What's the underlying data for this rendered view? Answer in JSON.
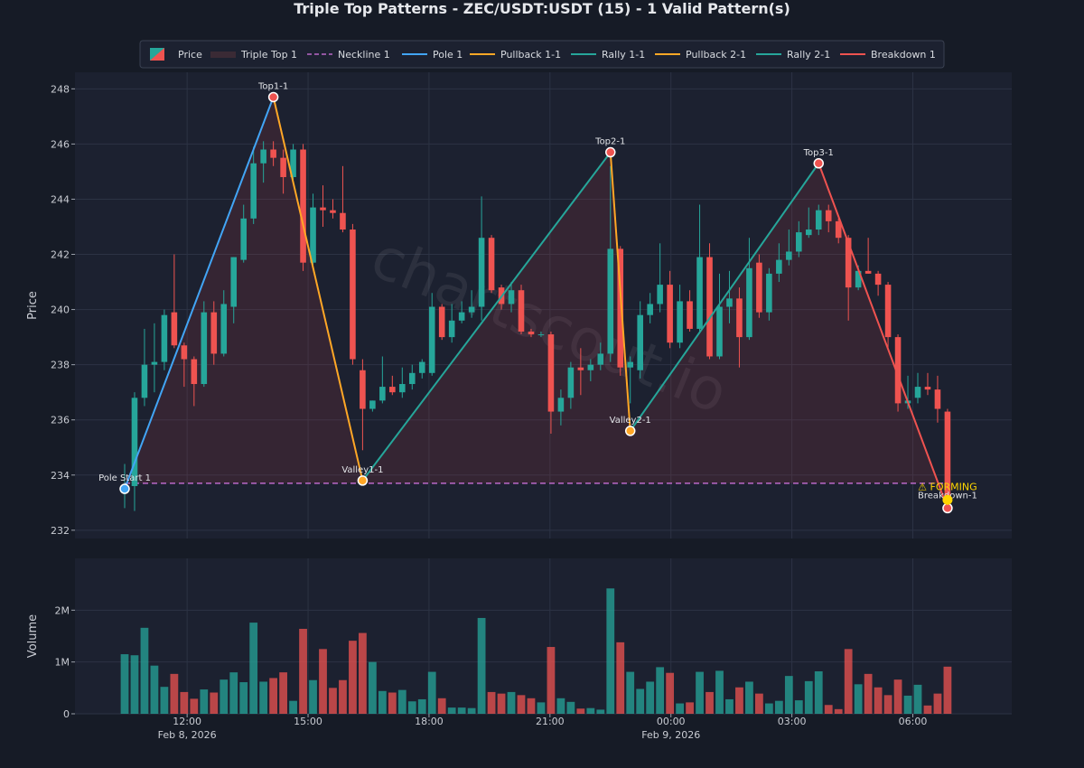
{
  "chart_data": {
    "type": "candlestick",
    "title": "Triple Top Patterns - ZEC/USDT:USDT (15) - 1 Valid Pattern(s)",
    "watermark": "chartscout.io",
    "price_ylabel": "Price",
    "volume_ylabel": "Volume",
    "price_ylim": [
      231.7,
      248.6
    ],
    "price_yticks": [
      232,
      234,
      236,
      238,
      240,
      242,
      244,
      246,
      248
    ],
    "volume_ylim": [
      0,
      3000000
    ],
    "volume_ticks": [
      {
        "value": 0,
        "label": "0"
      },
      {
        "value": 1000000,
        "label": "1M"
      },
      {
        "value": 2000000,
        "label": "2M"
      }
    ],
    "x_ticks": [
      {
        "index": 6.3,
        "time": "12:00",
        "date": "Feb 8, 2026"
      },
      {
        "index": 18.5,
        "time": "15:00",
        "date": ""
      },
      {
        "index": 30.7,
        "time": "18:00",
        "date": ""
      },
      {
        "index": 42.9,
        "time": "21:00",
        "date": ""
      },
      {
        "index": 55.1,
        "time": "00:00",
        "date": "Feb 9, 2026"
      },
      {
        "index": 67.3,
        "time": "03:00",
        "date": ""
      },
      {
        "index": 79.5,
        "time": "06:00",
        "date": ""
      }
    ],
    "grid": true,
    "legend_position": "top-center",
    "colors": {
      "up": "#26a69a",
      "down": "#ef5350",
      "pole": "#42a5f5",
      "pullback": "#ffa726",
      "rally": "#26a69a",
      "breakdown": "#ef5350",
      "neckline": "#ba68c8",
      "forming": "#ffd600"
    },
    "candles": [
      {
        "o": 233.5,
        "h": 234.4,
        "l": 232.8,
        "c": 233.6,
        "v": 1150000
      },
      {
        "o": 233.6,
        "h": 237.0,
        "l": 232.7,
        "c": 236.8,
        "v": 1130000
      },
      {
        "o": 236.8,
        "h": 239.3,
        "l": 236.5,
        "c": 238.0,
        "v": 1660000
      },
      {
        "o": 238.0,
        "h": 239.5,
        "l": 237.0,
        "c": 238.1,
        "v": 930000
      },
      {
        "o": 238.1,
        "h": 240.0,
        "l": 237.8,
        "c": 239.8,
        "v": 520000
      },
      {
        "o": 239.9,
        "h": 242.0,
        "l": 238.6,
        "c": 238.7,
        "v": 770000
      },
      {
        "o": 238.7,
        "h": 238.8,
        "l": 237.2,
        "c": 238.2,
        "v": 420000
      },
      {
        "o": 238.2,
        "h": 238.3,
        "l": 236.5,
        "c": 237.3,
        "v": 290000
      },
      {
        "o": 237.3,
        "h": 240.3,
        "l": 237.2,
        "c": 239.9,
        "v": 470000
      },
      {
        "o": 239.9,
        "h": 240.3,
        "l": 238.0,
        "c": 238.4,
        "v": 410000
      },
      {
        "o": 238.4,
        "h": 240.7,
        "l": 238.3,
        "c": 240.2,
        "v": 660000
      },
      {
        "o": 240.1,
        "h": 241.9,
        "l": 239.5,
        "c": 241.9,
        "v": 800000
      },
      {
        "o": 241.8,
        "h": 243.8,
        "l": 241.7,
        "c": 243.3,
        "v": 610000
      },
      {
        "o": 243.3,
        "h": 245.9,
        "l": 243.1,
        "c": 245.3,
        "v": 1760000
      },
      {
        "o": 245.3,
        "h": 246.1,
        "l": 244.6,
        "c": 245.8,
        "v": 620000
      },
      {
        "o": 245.8,
        "h": 246.1,
        "l": 245.2,
        "c": 245.5,
        "v": 690000
      },
      {
        "o": 245.5,
        "h": 245.8,
        "l": 244.2,
        "c": 244.8,
        "v": 800000
      },
      {
        "o": 244.8,
        "h": 246.0,
        "l": 244.7,
        "c": 245.8,
        "v": 250000
      },
      {
        "o": 245.8,
        "h": 246.0,
        "l": 241.4,
        "c": 241.7,
        "v": 1640000
      },
      {
        "o": 241.7,
        "h": 244.2,
        "l": 241.6,
        "c": 243.7,
        "v": 650000
      },
      {
        "o": 243.7,
        "h": 244.5,
        "l": 243.0,
        "c": 243.6,
        "v": 1250000
      },
      {
        "o": 243.6,
        "h": 244.0,
        "l": 243.3,
        "c": 243.5,
        "v": 500000
      },
      {
        "o": 243.5,
        "h": 245.2,
        "l": 242.8,
        "c": 242.9,
        "v": 650000
      },
      {
        "o": 242.9,
        "h": 243.1,
        "l": 238.0,
        "c": 238.2,
        "v": 1410000
      },
      {
        "o": 237.8,
        "h": 238.2,
        "l": 234.9,
        "c": 236.4,
        "v": 1560000
      },
      {
        "o": 236.4,
        "h": 236.7,
        "l": 236.3,
        "c": 236.7,
        "v": 1000000
      },
      {
        "o": 236.7,
        "h": 238.3,
        "l": 236.6,
        "c": 237.2,
        "v": 440000
      },
      {
        "o": 237.2,
        "h": 237.6,
        "l": 236.9,
        "c": 237.0,
        "v": 410000
      },
      {
        "o": 237.0,
        "h": 237.9,
        "l": 236.8,
        "c": 237.3,
        "v": 460000
      },
      {
        "o": 237.3,
        "h": 238.0,
        "l": 237.1,
        "c": 237.7,
        "v": 240000
      },
      {
        "o": 237.7,
        "h": 238.2,
        "l": 237.5,
        "c": 238.1,
        "v": 280000
      },
      {
        "o": 237.7,
        "h": 240.6,
        "l": 237.6,
        "c": 240.1,
        "v": 810000
      },
      {
        "o": 240.1,
        "h": 240.2,
        "l": 238.9,
        "c": 239.0,
        "v": 300000
      },
      {
        "o": 239.0,
        "h": 240.2,
        "l": 238.8,
        "c": 239.6,
        "v": 120000
      },
      {
        "o": 239.6,
        "h": 240.3,
        "l": 239.5,
        "c": 239.9,
        "v": 120000
      },
      {
        "o": 239.9,
        "h": 240.7,
        "l": 239.7,
        "c": 240.1,
        "v": 110000
      },
      {
        "o": 240.1,
        "h": 244.1,
        "l": 239.6,
        "c": 242.6,
        "v": 1850000
      },
      {
        "o": 242.6,
        "h": 242.7,
        "l": 240.6,
        "c": 240.7,
        "v": 420000
      },
      {
        "o": 240.8,
        "h": 240.9,
        "l": 240.0,
        "c": 240.2,
        "v": 390000
      },
      {
        "o": 240.2,
        "h": 241.0,
        "l": 239.9,
        "c": 240.7,
        "v": 420000
      },
      {
        "o": 240.7,
        "h": 240.9,
        "l": 239.1,
        "c": 239.2,
        "v": 360000
      },
      {
        "o": 239.2,
        "h": 239.3,
        "l": 239.0,
        "c": 239.1,
        "v": 300000
      },
      {
        "o": 239.1,
        "h": 239.2,
        "l": 239.0,
        "c": 239.1,
        "v": 220000
      },
      {
        "o": 239.1,
        "h": 239.2,
        "l": 235.5,
        "c": 236.3,
        "v": 1290000
      },
      {
        "o": 236.3,
        "h": 237.1,
        "l": 235.8,
        "c": 236.8,
        "v": 300000
      },
      {
        "o": 236.8,
        "h": 238.1,
        "l": 236.4,
        "c": 237.9,
        "v": 230000
      },
      {
        "o": 237.9,
        "h": 238.6,
        "l": 236.9,
        "c": 237.8,
        "v": 100000
      },
      {
        "o": 237.8,
        "h": 238.2,
        "l": 237.4,
        "c": 238.0,
        "v": 110000
      },
      {
        "o": 238.0,
        "h": 238.8,
        "l": 237.8,
        "c": 238.4,
        "v": 80000
      },
      {
        "o": 238.4,
        "h": 245.2,
        "l": 238.1,
        "c": 242.2,
        "v": 2420000
      },
      {
        "o": 242.2,
        "h": 242.3,
        "l": 237.6,
        "c": 237.9,
        "v": 1380000
      },
      {
        "o": 237.9,
        "h": 238.3,
        "l": 236.6,
        "c": 238.1,
        "v": 810000
      },
      {
        "o": 237.8,
        "h": 240.3,
        "l": 237.5,
        "c": 239.8,
        "v": 480000
      },
      {
        "o": 239.8,
        "h": 240.6,
        "l": 239.5,
        "c": 240.2,
        "v": 620000
      },
      {
        "o": 240.2,
        "h": 242.4,
        "l": 239.9,
        "c": 240.9,
        "v": 900000
      },
      {
        "o": 240.9,
        "h": 241.4,
        "l": 238.6,
        "c": 238.8,
        "v": 790000
      },
      {
        "o": 238.8,
        "h": 240.9,
        "l": 238.6,
        "c": 240.3,
        "v": 200000
      },
      {
        "o": 240.3,
        "h": 240.7,
        "l": 239.2,
        "c": 239.3,
        "v": 220000
      },
      {
        "o": 239.3,
        "h": 243.8,
        "l": 239.2,
        "c": 241.9,
        "v": 810000
      },
      {
        "o": 241.9,
        "h": 242.4,
        "l": 238.2,
        "c": 238.3,
        "v": 420000
      },
      {
        "o": 238.3,
        "h": 241.3,
        "l": 238.2,
        "c": 240.1,
        "v": 830000
      },
      {
        "o": 240.1,
        "h": 241.4,
        "l": 239.5,
        "c": 240.4,
        "v": 280000
      },
      {
        "o": 240.4,
        "h": 240.8,
        "l": 237.9,
        "c": 239.0,
        "v": 510000
      },
      {
        "o": 239.0,
        "h": 242.6,
        "l": 238.9,
        "c": 241.5,
        "v": 620000
      },
      {
        "o": 241.7,
        "h": 242.0,
        "l": 239.7,
        "c": 239.9,
        "v": 390000
      },
      {
        "o": 239.9,
        "h": 241.5,
        "l": 239.6,
        "c": 241.3,
        "v": 200000
      },
      {
        "o": 241.3,
        "h": 242.4,
        "l": 241.0,
        "c": 241.8,
        "v": 250000
      },
      {
        "o": 241.8,
        "h": 242.9,
        "l": 241.6,
        "c": 242.1,
        "v": 730000
      },
      {
        "o": 242.1,
        "h": 243.2,
        "l": 241.9,
        "c": 242.8,
        "v": 260000
      },
      {
        "o": 242.7,
        "h": 243.7,
        "l": 242.6,
        "c": 242.9,
        "v": 630000
      },
      {
        "o": 242.9,
        "h": 243.8,
        "l": 242.7,
        "c": 243.6,
        "v": 820000
      },
      {
        "o": 243.6,
        "h": 243.8,
        "l": 242.8,
        "c": 243.2,
        "v": 170000
      },
      {
        "o": 243.2,
        "h": 243.3,
        "l": 242.4,
        "c": 242.6,
        "v": 90000
      },
      {
        "o": 242.6,
        "h": 242.7,
        "l": 239.6,
        "c": 240.8,
        "v": 1250000
      },
      {
        "o": 240.8,
        "h": 241.6,
        "l": 240.7,
        "c": 241.4,
        "v": 570000
      },
      {
        "o": 241.4,
        "h": 242.6,
        "l": 241.3,
        "c": 241.3,
        "v": 770000
      },
      {
        "o": 241.3,
        "h": 241.4,
        "l": 240.5,
        "c": 240.9,
        "v": 510000
      },
      {
        "o": 240.9,
        "h": 241.0,
        "l": 238.6,
        "c": 239.0,
        "v": 360000
      },
      {
        "o": 239.0,
        "h": 239.1,
        "l": 236.3,
        "c": 236.6,
        "v": 660000
      },
      {
        "o": 236.6,
        "h": 237.6,
        "l": 236.4,
        "c": 236.7,
        "v": 350000
      },
      {
        "o": 236.8,
        "h": 237.7,
        "l": 236.6,
        "c": 237.2,
        "v": 560000
      },
      {
        "o": 237.2,
        "h": 237.7,
        "l": 236.9,
        "c": 237.1,
        "v": 160000
      },
      {
        "o": 237.1,
        "h": 237.6,
        "l": 235.9,
        "c": 236.4,
        "v": 390000
      },
      {
        "o": 236.3,
        "h": 236.4,
        "l": 232.9,
        "c": 233.1,
        "v": 910000
      }
    ],
    "pattern": {
      "points": [
        {
          "key": "pole_start",
          "label": "Pole Start 1",
          "index": 0,
          "price": 233.5,
          "color": "#42a5f5"
        },
        {
          "key": "top1",
          "label": "Top1-1",
          "index": 15,
          "price": 247.7,
          "color": "#ef5350"
        },
        {
          "key": "valley1",
          "label": "Valley1-1",
          "index": 24,
          "price": 233.8,
          "color": "#ffa726"
        },
        {
          "key": "top2",
          "label": "Top2-1",
          "index": 49,
          "price": 245.7,
          "color": "#ef5350"
        },
        {
          "key": "valley2",
          "label": "Valley2-1",
          "index": 51,
          "price": 235.6,
          "color": "#ffa726"
        },
        {
          "key": "top3",
          "label": "Top3-1",
          "index": 70,
          "price": 245.3,
          "color": "#ef5350"
        },
        {
          "key": "breakdown",
          "label": "Breakdown-1",
          "index": 83,
          "price": 232.8,
          "color": "#ef5350"
        }
      ],
      "neckline": 233.7,
      "forming_label": "⚠ FORMING",
      "forming_price": 233.1
    },
    "legend": [
      {
        "label": "Price",
        "kind": "candle"
      },
      {
        "label": "Triple Top 1",
        "kind": "fill",
        "color": "#3a2a35"
      },
      {
        "label": "Neckline 1",
        "kind": "dash",
        "color": "#ba68c8"
      },
      {
        "label": "Pole 1",
        "kind": "line",
        "color": "#42a5f5"
      },
      {
        "label": "Pullback 1-1",
        "kind": "line",
        "color": "#ffa726"
      },
      {
        "label": "Rally 1-1",
        "kind": "line",
        "color": "#26a69a"
      },
      {
        "label": "Pullback 2-1",
        "kind": "line",
        "color": "#ffa726"
      },
      {
        "label": "Rally 2-1",
        "kind": "line",
        "color": "#26a69a"
      },
      {
        "label": "Breakdown 1",
        "kind": "line",
        "color": "#ef5350"
      }
    ]
  }
}
